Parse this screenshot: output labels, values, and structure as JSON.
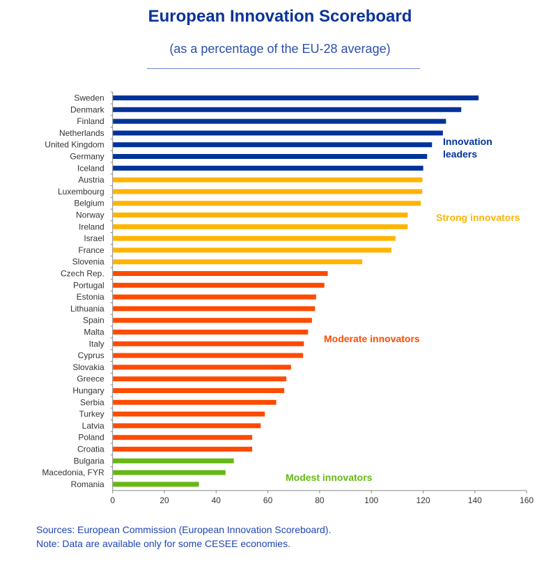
{
  "chart_data": {
    "type": "bar",
    "orientation": "horizontal",
    "title": "European Innovation Scoreboard",
    "subtitle": "(as a percentage of the EU-28 average)",
    "xlabel": "",
    "ylabel": "",
    "xlim": [
      0,
      160
    ],
    "xticks": [
      0,
      20,
      40,
      60,
      80,
      100,
      120,
      140,
      160
    ],
    "grid": false,
    "categories": [
      "Sweden",
      "Denmark",
      "Finland",
      "Netherlands",
      "United Kingdom",
      "Germany",
      "Iceland",
      "Austria",
      "Luxembourg",
      "Belgium",
      "Norway",
      "Ireland",
      "Israel",
      "France",
      "Slovenia",
      "Czech Rep.",
      "Portugal",
      "Estonia",
      "Lithuania",
      "Spain",
      "Malta",
      "Italy",
      "Cyprus",
      "Slovakia",
      "Greece",
      "Hungary",
      "Serbia",
      "Turkey",
      "Latvia",
      "Poland",
      "Croatia",
      "Bulgaria",
      "Macedonia, FYR",
      "Romania"
    ],
    "values": [
      141.3,
      134.6,
      128.7,
      127.5,
      123.3,
      121.4,
      119.9,
      119.6,
      119.5,
      119.0,
      113.9,
      113.9,
      109.2,
      107.6,
      96.3,
      83.0,
      81.7,
      78.5,
      78.1,
      76.9,
      75.4,
      73.8,
      73.5,
      68.8,
      67.0,
      66.2,
      63.1,
      58.7,
      57.1,
      53.8,
      53.8,
      46.7,
      43.5,
      33.2
    ],
    "groups": [
      {
        "name": "Innovation leaders",
        "color": "#003399",
        "count": 7
      },
      {
        "name": "Strong innovators",
        "color": "#FFB400",
        "count": 8
      },
      {
        "name": "Moderate innovators",
        "color": "#FF4B00",
        "count": 16
      },
      {
        "name": "Modest innovators",
        "color": "#66B814",
        "count": 3
      }
    ]
  },
  "notes": {
    "sources": "Sources: European Commission (European Innovation  Scoreboard).",
    "note": "Note: Data are available  only for some CESEE economies."
  }
}
